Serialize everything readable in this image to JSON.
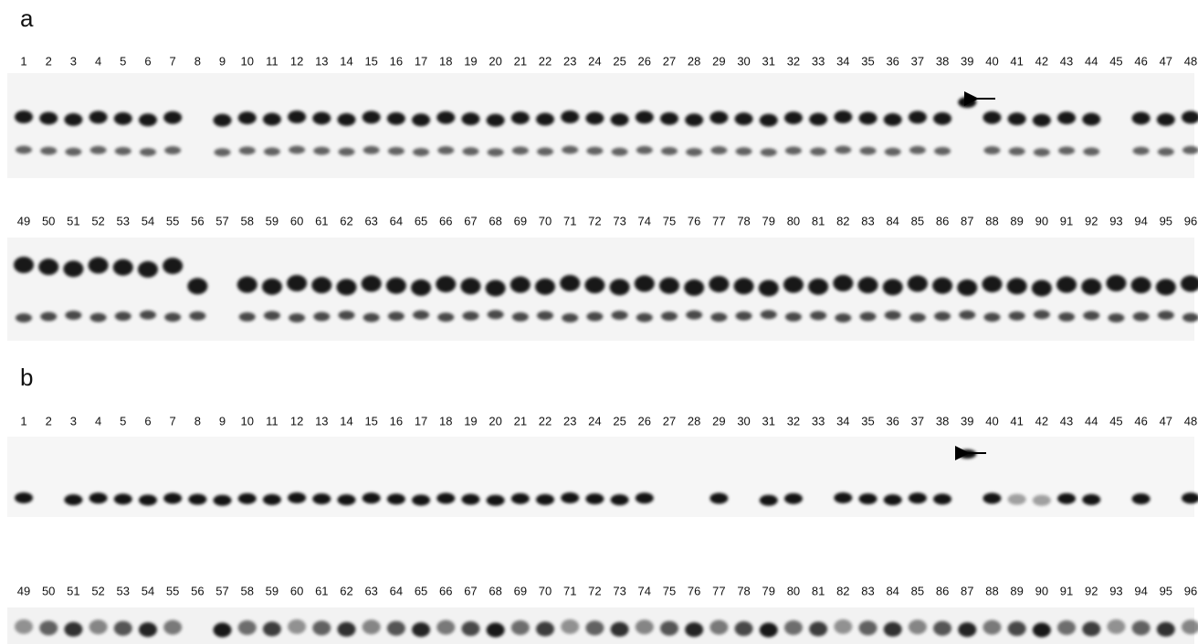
{
  "panels": [
    {
      "label": "a",
      "rows": [
        {
          "lanes": [
            1,
            2,
            3,
            4,
            5,
            6,
            7,
            8,
            9,
            10,
            11,
            12,
            13,
            14,
            15,
            16,
            17,
            18,
            19,
            20,
            21,
            22,
            23,
            24,
            25,
            26,
            27,
            28,
            29,
            30,
            31,
            32,
            33,
            34,
            35,
            36,
            37,
            38,
            39,
            40,
            41,
            42,
            43,
            44,
            45,
            46,
            47,
            48
          ]
        },
        {
          "lanes": [
            49,
            50,
            51,
            52,
            53,
            54,
            55,
            56,
            57,
            58,
            59,
            60,
            61,
            62,
            63,
            64,
            65,
            66,
            67,
            68,
            69,
            70,
            71,
            72,
            73,
            74,
            75,
            76,
            77,
            78,
            79,
            80,
            81,
            82,
            83,
            84,
            85,
            86,
            87,
            88,
            89,
            90,
            91,
            92,
            93,
            94,
            95,
            96
          ]
        }
      ]
    },
    {
      "label": "b",
      "rows": [
        {
          "lanes": [
            1,
            2,
            3,
            4,
            5,
            6,
            7,
            8,
            9,
            10,
            11,
            12,
            13,
            14,
            15,
            16,
            17,
            18,
            19,
            20,
            21,
            22,
            23,
            24,
            25,
            26,
            27,
            28,
            29,
            30,
            31,
            32,
            33,
            34,
            35,
            36,
            37,
            38,
            39,
            40,
            41,
            42,
            43,
            44,
            45,
            46,
            47,
            48
          ]
        },
        {
          "lanes": [
            49,
            50,
            51,
            52,
            53,
            54,
            55,
            56,
            57,
            58,
            59,
            60,
            61,
            62,
            63,
            64,
            65,
            66,
            67,
            68,
            69,
            70,
            71,
            72,
            73,
            74,
            75,
            76,
            77,
            78,
            79,
            80,
            81,
            82,
            83,
            84,
            85,
            86,
            87,
            88,
            89,
            90,
            91,
            92,
            93,
            94,
            95,
            96
          ]
        }
      ]
    }
  ]
}
